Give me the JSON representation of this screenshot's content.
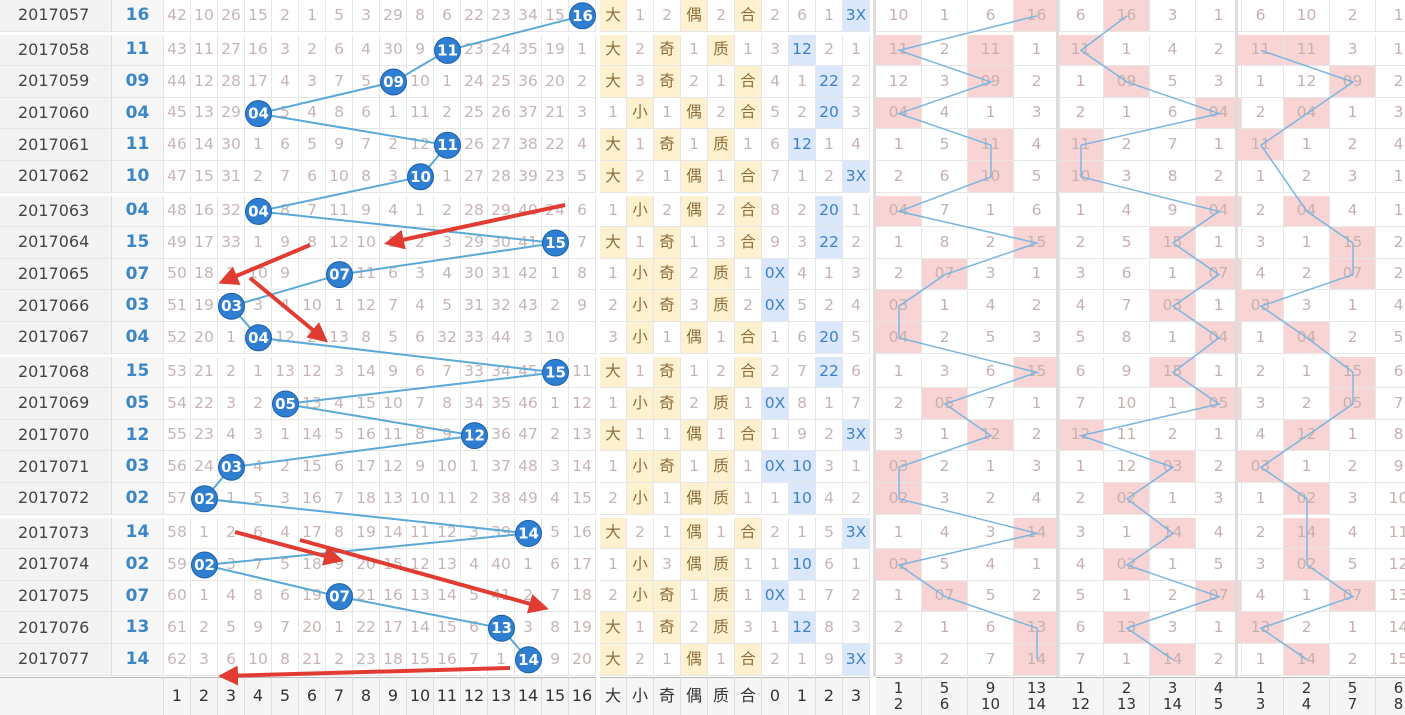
{
  "chart_data": {
    "type": "table",
    "title": "",
    "numbers_col_labels": [
      "1",
      "2",
      "3",
      "4",
      "5",
      "6",
      "7",
      "8",
      "9",
      "10",
      "11",
      "12",
      "13",
      "14",
      "15",
      "16"
    ],
    "attr_col_labels": [
      "大",
      "小",
      "奇",
      "偶",
      "质",
      "合",
      "0",
      "1",
      "2",
      "3"
    ],
    "group_col_labels": [
      [
        "1\n2",
        "5\n6",
        "9\n10",
        "13\n14"
      ],
      [
        "1\n12",
        "2\n13",
        "3\n14",
        "4\n5"
      ],
      [
        "1\n3",
        "2\n4",
        "5\n7",
        "6\n8"
      ]
    ],
    "rows": [
      {
        "issue": "2017057",
        "win": "16",
        "omit": [
          42,
          10,
          26,
          15,
          2,
          1,
          5,
          3,
          29,
          8,
          6,
          22,
          23,
          34,
          15,
          null
        ],
        "attrs": [
          "大",
          "1",
          "2",
          "偶",
          "2",
          "合",
          "2",
          "6",
          "1",
          "3X"
        ],
        "g1": [
          "10",
          "1",
          "6",
          "16"
        ],
        "g2": [
          "6",
          "16",
          "3",
          "1"
        ],
        "g3": [
          "6",
          "10",
          "2",
          "1"
        ]
      },
      {
        "issue": "2017058",
        "win": "11",
        "omit": [
          43,
          11,
          27,
          16,
          3,
          2,
          6,
          4,
          30,
          9,
          null,
          23,
          24,
          35,
          19,
          1
        ],
        "attrs": [
          "大",
          "2",
          "奇",
          "1",
          "质",
          "1",
          "3",
          "12",
          "2",
          "1"
        ],
        "g1": [
          "11",
          "2",
          "11",
          "1"
        ],
        "g2": [
          "11",
          "1",
          "4",
          "2"
        ],
        "g3": [
          "11",
          "11",
          "3",
          "1"
        ]
      },
      {
        "issue": "2017059",
        "win": "09",
        "omit": [
          44,
          12,
          28,
          17,
          4,
          3,
          7,
          5,
          null,
          10,
          1,
          24,
          25,
          36,
          20,
          2
        ],
        "attrs": [
          "大",
          "3",
          "奇",
          "2",
          "1",
          "合",
          "4",
          "1",
          "22",
          "2"
        ],
        "g1": [
          "12",
          "3",
          "09",
          "2"
        ],
        "g2": [
          "1",
          "09",
          "5",
          "3"
        ],
        "g3": [
          "1",
          "12",
          "09",
          "2"
        ]
      },
      {
        "issue": "2017060",
        "win": "04",
        "omit": [
          45,
          13,
          29,
          null,
          5,
          4,
          8,
          6,
          1,
          11,
          2,
          25,
          26,
          37,
          21,
          3
        ],
        "attrs": [
          "1",
          "小",
          "1",
          "偶",
          "2",
          "合",
          "5",
          "2",
          "20",
          "3"
        ],
        "g1": [
          "04",
          "4",
          "1",
          "3"
        ],
        "g2": [
          "2",
          "1",
          "6",
          "04"
        ],
        "g3": [
          "2",
          "04",
          "1",
          "3"
        ]
      },
      {
        "issue": "2017061",
        "win": "11",
        "omit": [
          46,
          14,
          30,
          1,
          6,
          5,
          9,
          7,
          2,
          12,
          null,
          26,
          27,
          38,
          22,
          4
        ],
        "attrs": [
          "大",
          "1",
          "奇",
          "1",
          "质",
          "1",
          "6",
          "12",
          "1",
          "4"
        ],
        "g1": [
          "1",
          "5",
          "11",
          "4"
        ],
        "g2": [
          "11",
          "2",
          "7",
          "1"
        ],
        "g3": [
          "11",
          "1",
          "2",
          "4"
        ]
      },
      {
        "issue": "2017062",
        "win": "10",
        "omit": [
          47,
          15,
          31,
          2,
          7,
          6,
          10,
          8,
          3,
          null,
          1,
          27,
          28,
          39,
          23,
          5
        ],
        "attrs": [
          "大",
          "2",
          "1",
          "偶",
          "1",
          "合",
          "7",
          "1",
          "2",
          "3X"
        ],
        "g1": [
          "2",
          "6",
          "10",
          "5"
        ],
        "g2": [
          "10",
          "3",
          "8",
          "2"
        ],
        "g3": [
          "1",
          "2",
          "3",
          "1"
        ]
      },
      {
        "issue": "2017063",
        "win": "04",
        "omit": [
          48,
          16,
          32,
          null,
          8,
          7,
          11,
          9,
          4,
          1,
          2,
          28,
          29,
          40,
          24,
          6
        ],
        "attrs": [
          "1",
          "小",
          "2",
          "偶",
          "2",
          "合",
          "8",
          "2",
          "20",
          "1"
        ],
        "g1": [
          "04",
          "7",
          "1",
          "6"
        ],
        "g2": [
          "1",
          "4",
          "9",
          "04"
        ],
        "g3": [
          "2",
          "04",
          "4",
          "1"
        ]
      },
      {
        "issue": "2017064",
        "win": "15",
        "omit": [
          49,
          17,
          33,
          1,
          9,
          8,
          12,
          10,
          5,
          2,
          3,
          29,
          30,
          41,
          null,
          7
        ],
        "attrs": [
          "大",
          "1",
          "奇",
          "1",
          "3",
          "合",
          "9",
          "3",
          "22",
          "2"
        ],
        "g1": [
          "1",
          "8",
          "2",
          "15"
        ],
        "g2": [
          "2",
          "5",
          "15",
          "1"
        ],
        "g3": [
          "3",
          "1",
          "15",
          "2"
        ]
      },
      {
        "issue": "2017065",
        "win": "07",
        "omit": [
          50,
          18,
          2,
          10,
          9,
          null,
          6,
          11,
          6,
          3,
          4,
          30,
          31,
          42,
          1,
          8
        ],
        "attrs": [
          "1",
          "小",
          "奇",
          "2",
          "质",
          "1",
          "0X",
          "4",
          "1",
          "3"
        ],
        "g1": [
          "2",
          "07",
          "3",
          "1"
        ],
        "g2": [
          "3",
          "6",
          "1",
          "07"
        ],
        "g3": [
          "4",
          "2",
          "07",
          "2"
        ]
      },
      {
        "issue": "2017066",
        "win": "03",
        "omit": [
          51,
          19,
          null,
          3,
          4,
          10,
          1,
          12,
          7,
          4,
          5,
          31,
          32,
          43,
          2,
          9
        ],
        "attrs": [
          "2",
          "小",
          "奇",
          "3",
          "质",
          "2",
          "0X",
          "5",
          "2",
          "4"
        ],
        "g1": [
          "03",
          "1",
          "4",
          "2"
        ],
        "g2": [
          "4",
          "7",
          "03",
          "1"
        ],
        "g3": [
          "03",
          "3",
          "1",
          "4"
        ]
      },
      {
        "issue": "2017067",
        "win": "04",
        "omit": [
          52,
          20,
          1,
          null,
          12,
          2,
          13,
          8,
          5,
          6,
          32,
          33,
          44,
          3,
          10,
          null
        ],
        "attrs": [
          "3",
          "小",
          "1",
          "偶",
          "1",
          "合",
          "1",
          "6",
          "20",
          "5"
        ],
        "g1": [
          "04",
          "2",
          "5",
          "3"
        ],
        "g2": [
          "5",
          "8",
          "1",
          "04"
        ],
        "g3": [
          "1",
          "04",
          "2",
          "5"
        ]
      },
      {
        "issue": "2017068",
        "win": "15",
        "omit": [
          53,
          21,
          2,
          1,
          13,
          12,
          3,
          14,
          9,
          6,
          7,
          33,
          34,
          45,
          null,
          11
        ],
        "attrs": [
          "大",
          "1",
          "奇",
          "1",
          "2",
          "合",
          "2",
          "7",
          "22",
          "6"
        ],
        "g1": [
          "1",
          "3",
          "6",
          "15"
        ],
        "g2": [
          "6",
          "9",
          "15",
          "1"
        ],
        "g3": [
          "2",
          "1",
          "15",
          "6"
        ]
      },
      {
        "issue": "2017069",
        "win": "05",
        "omit": [
          54,
          22,
          3,
          2,
          null,
          13,
          4,
          15,
          10,
          7,
          8,
          34,
          35,
          46,
          1,
          12
        ],
        "attrs": [
          "1",
          "小",
          "奇",
          "2",
          "质",
          "1",
          "0X",
          "8",
          "1",
          "7"
        ],
        "g1": [
          "2",
          "05",
          "7",
          "1"
        ],
        "g2": [
          "7",
          "10",
          "1",
          "05"
        ],
        "g3": [
          "3",
          "2",
          "05",
          "7"
        ]
      },
      {
        "issue": "2017070",
        "win": "12",
        "omit": [
          55,
          23,
          4,
          3,
          1,
          14,
          5,
          16,
          11,
          8,
          9,
          null,
          36,
          47,
          2,
          13
        ],
        "attrs": [
          "大",
          "1",
          "1",
          "偶",
          "1",
          "合",
          "1",
          "9",
          "2",
          "3X"
        ],
        "g1": [
          "3",
          "1",
          "12",
          "2"
        ],
        "g2": [
          "12",
          "11",
          "2",
          "1"
        ],
        "g3": [
          "4",
          "12",
          "1",
          "8"
        ]
      },
      {
        "issue": "2017071",
        "win": "03",
        "omit": [
          56,
          24,
          null,
          4,
          2,
          15,
          6,
          17,
          12,
          9,
          10,
          1,
          37,
          48,
          3,
          14
        ],
        "attrs": [
          "1",
          "小",
          "奇",
          "1",
          "质",
          "1",
          "0X",
          "10",
          "3",
          "1"
        ],
        "g1": [
          "03",
          "2",
          "1",
          "3"
        ],
        "g2": [
          "1",
          "12",
          "03",
          "2"
        ],
        "g3": [
          "03",
          "1",
          "2",
          "9"
        ]
      },
      {
        "issue": "2017072",
        "win": "02",
        "omit": [
          57,
          null,
          1,
          5,
          3,
          16,
          7,
          18,
          13,
          10,
          11,
          2,
          38,
          49,
          4,
          15
        ],
        "attrs": [
          "2",
          "小",
          "1",
          "偶",
          "质",
          "1",
          "1",
          "10",
          "4",
          "2"
        ],
        "g1": [
          "02",
          "3",
          "2",
          "4"
        ],
        "g2": [
          "2",
          "02",
          "1",
          "3"
        ],
        "g3": [
          "1",
          "02",
          "3",
          "10"
        ]
      },
      {
        "issue": "2017073",
        "win": "14",
        "omit": [
          58,
          1,
          2,
          6,
          4,
          17,
          8,
          19,
          14,
          11,
          12,
          3,
          39,
          null,
          5,
          16
        ],
        "attrs": [
          "大",
          "2",
          "1",
          "偶",
          "1",
          "合",
          "2",
          "1",
          "5",
          "3X"
        ],
        "g1": [
          "1",
          "4",
          "3",
          "14"
        ],
        "g2": [
          "3",
          "1",
          "14",
          "4"
        ],
        "g3": [
          "2",
          "14",
          "4",
          "11"
        ]
      },
      {
        "issue": "2017074",
        "win": "02",
        "omit": [
          59,
          null,
          3,
          7,
          5,
          18,
          9,
          20,
          15,
          12,
          13,
          4,
          40,
          1,
          6,
          17
        ],
        "attrs": [
          "1",
          "小",
          "3",
          "偶",
          "质",
          "1",
          "1",
          "10",
          "6",
          "1"
        ],
        "g1": [
          "02",
          "5",
          "4",
          "1"
        ],
        "g2": [
          "4",
          "02",
          "1",
          "5"
        ],
        "g3": [
          "3",
          "02",
          "5",
          "12"
        ]
      },
      {
        "issue": "2017075",
        "win": "07",
        "omit": [
          60,
          1,
          4,
          8,
          6,
          19,
          null,
          21,
          16,
          13,
          14,
          5,
          41,
          2,
          7,
          18
        ],
        "attrs": [
          "2",
          "小",
          "奇",
          "1",
          "质",
          "1",
          "0X",
          "1",
          "7",
          "2"
        ],
        "g1": [
          "1",
          "07",
          "5",
          "2"
        ],
        "g2": [
          "5",
          "1",
          "2",
          "07"
        ],
        "g3": [
          "4",
          "1",
          "07",
          "13"
        ]
      },
      {
        "issue": "2017076",
        "win": "13",
        "omit": [
          61,
          2,
          5,
          9,
          7,
          20,
          1,
          22,
          17,
          14,
          15,
          6,
          null,
          3,
          8,
          19
        ],
        "attrs": [
          "大",
          "1",
          "奇",
          "2",
          "质",
          "3",
          "1",
          "12",
          "8",
          "3"
        ],
        "g1": [
          "2",
          "1",
          "6",
          "13"
        ],
        "g2": [
          "6",
          "13",
          "3",
          "1"
        ],
        "g3": [
          "13",
          "2",
          "1",
          "14"
        ]
      },
      {
        "issue": "2017077",
        "win": "14",
        "omit": [
          62,
          3,
          6,
          10,
          8,
          21,
          2,
          23,
          18,
          15,
          16,
          7,
          1,
          null,
          9,
          20
        ],
        "attrs": [
          "大",
          "2",
          "1",
          "偶",
          "1",
          "合",
          "2",
          "1",
          "9",
          "3X"
        ],
        "g1": [
          "3",
          "2",
          "7",
          "14"
        ],
        "g2": [
          "7",
          "1",
          "14",
          "2"
        ],
        "g3": [
          "1",
          "14",
          "2",
          "15"
        ]
      }
    ]
  }
}
